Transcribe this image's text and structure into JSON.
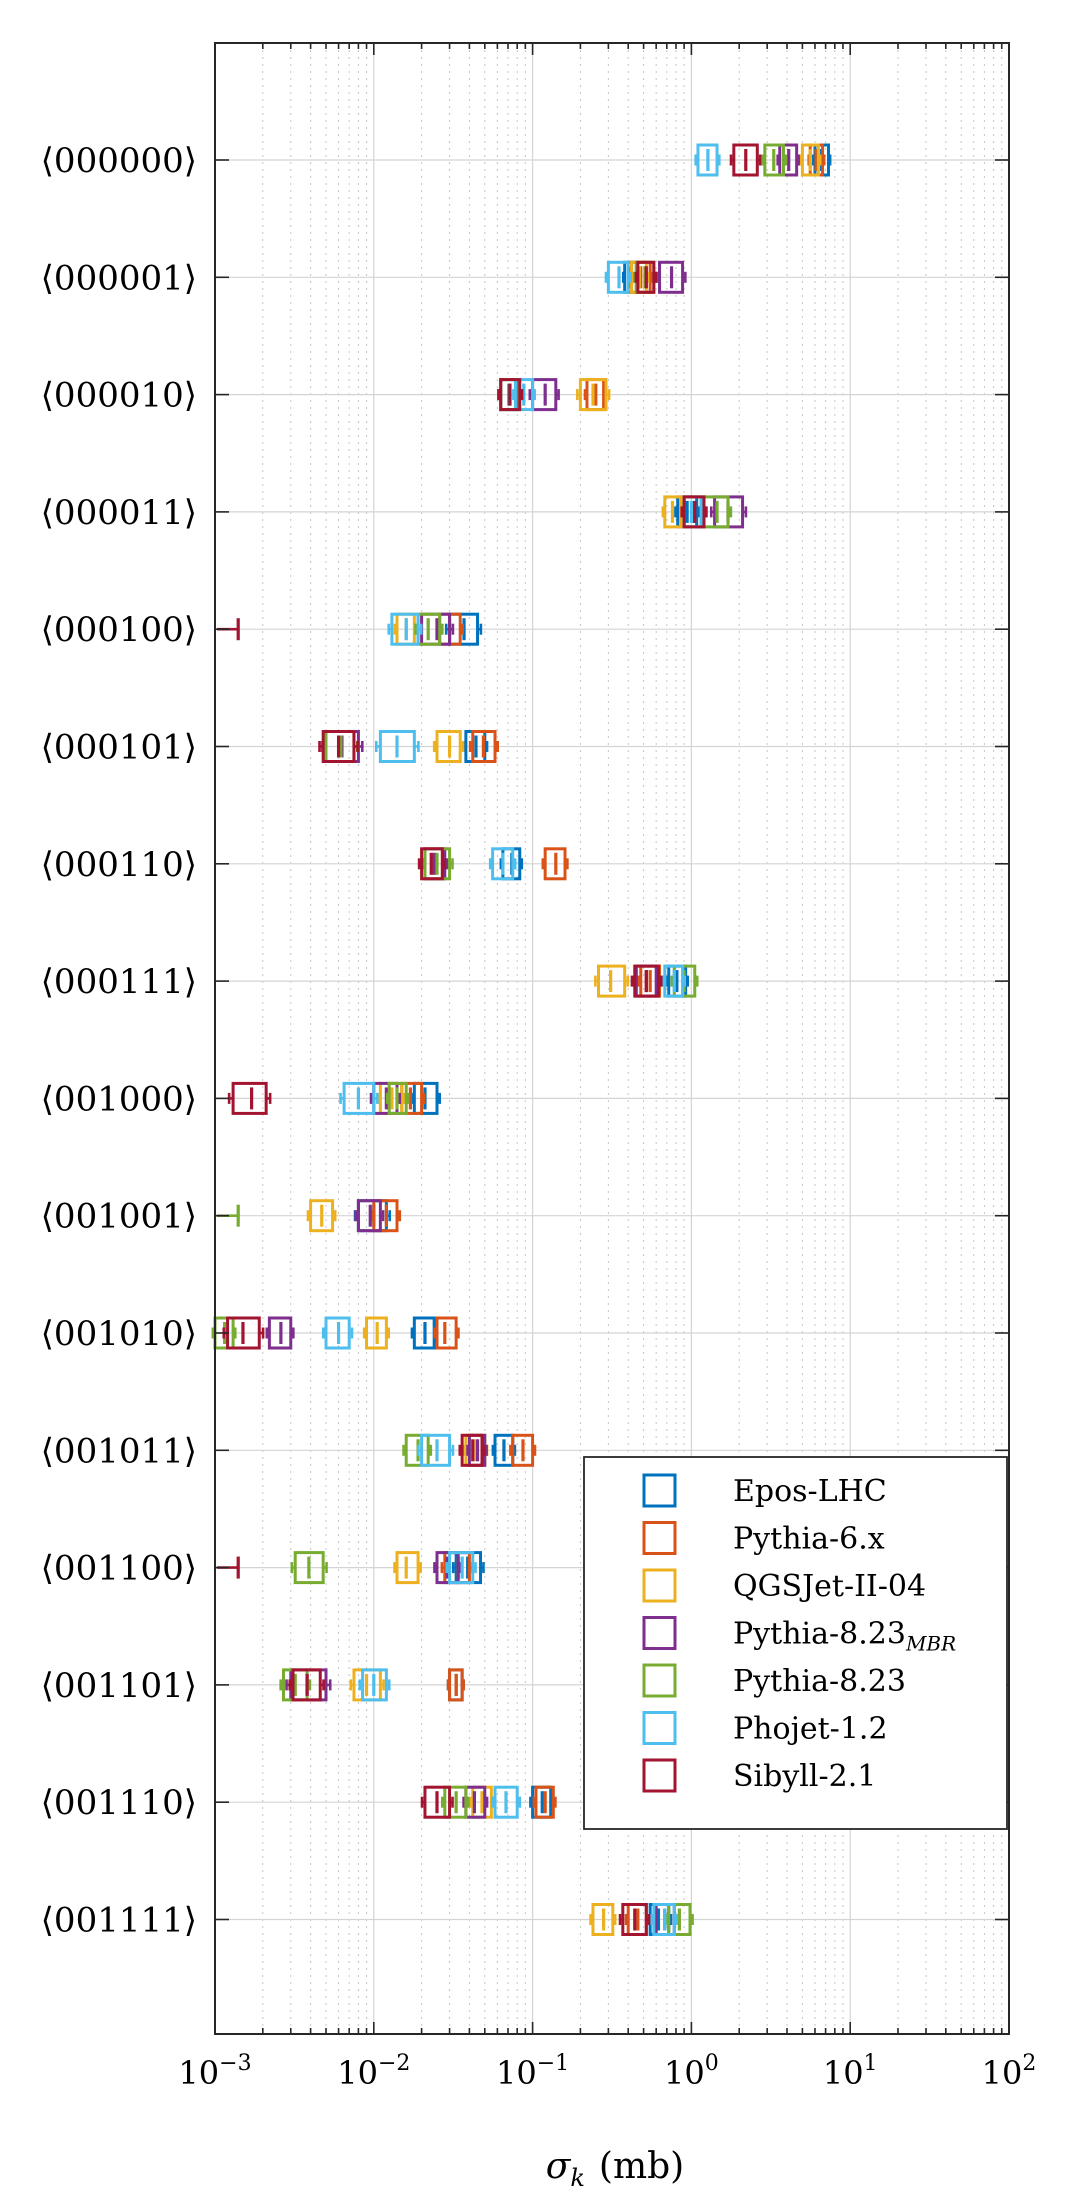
{
  "chart_data": {
    "type": "box",
    "orientation": "horizontal",
    "x_scale": "log",
    "xlim": [
      0.001,
      100
    ],
    "x_ticks": [
      0.001,
      0.01,
      0.1,
      1,
      10,
      100
    ],
    "x_tick_labels": [
      "10⁻³",
      "10⁻²",
      "10⁻¹",
      "10⁰",
      "10¹",
      "10²"
    ],
    "xlabel": "σk (mb)",
    "xlabel_main": "σ",
    "xlabel_sub": "k",
    "xlabel_unit": "(mb)",
    "grid": true,
    "legend_position": "lower-right",
    "categories": [
      "⟨000000⟩",
      "⟨000001⟩",
      "⟨000010⟩",
      "⟨000011⟩",
      "⟨000100⟩",
      "⟨000101⟩",
      "⟨000110⟩",
      "⟨000111⟩",
      "⟨001000⟩",
      "⟨001001⟩",
      "⟨001010⟩",
      "⟨001011⟩",
      "⟨001100⟩",
      "⟨001101⟩",
      "⟨001110⟩",
      "⟨001111⟩"
    ],
    "series": [
      {
        "name": "Epos-LHC",
        "color": "#0072BD",
        "boxes": [
          [
            6.0,
            7.3,
            6.6
          ],
          [
            0.38,
            0.45,
            0.41
          ],
          [
            0.063,
            0.08,
            0.071
          ],
          [
            0.82,
            1.08,
            0.94
          ],
          [
            0.03,
            0.045,
            0.037
          ],
          [
            0.038,
            0.05,
            0.044
          ],
          [
            0.065,
            0.083,
            0.074
          ],
          [
            0.72,
            0.92,
            0.81
          ],
          [
            0.018,
            0.025,
            0.021
          ],
          [
            0.008,
            0.012,
            0.01
          ],
          [
            0.018,
            0.024,
            0.021
          ],
          [
            0.058,
            0.075,
            0.066
          ],
          [
            0.033,
            0.047,
            0.039
          ],
          [
            0.03,
            0.036,
            0.033
          ],
          [
            0.1,
            0.13,
            0.115
          ],
          [
            0.55,
            0.72,
            0.62
          ]
        ]
      },
      {
        "name": "Pythia-6.x",
        "color": "#D95319",
        "boxes": [
          [
            5.6,
            6.7,
            6.1
          ],
          [
            0.42,
            0.55,
            0.48
          ],
          [
            0.22,
            0.28,
            0.25
          ],
          [
            0.9,
            1.2,
            1.04
          ],
          [
            0.026,
            0.035,
            0.03
          ],
          [
            0.042,
            0.058,
            0.049
          ],
          [
            0.12,
            0.16,
            0.14
          ],
          [
            0.48,
            0.63,
            0.55
          ],
          [
            0.015,
            0.02,
            0.017
          ],
          [
            0.01,
            0.014,
            0.012
          ],
          [
            0.025,
            0.033,
            0.028
          ],
          [
            0.075,
            0.1,
            0.087
          ],
          [
            0.028,
            0.04,
            0.034
          ],
          [
            0.03,
            0.036,
            0.033
          ],
          [
            0.105,
            0.135,
            0.12
          ],
          [
            0.4,
            0.52,
            0.46
          ]
        ]
      },
      {
        "name": "QGSJet-II-04",
        "color": "#EDB120",
        "boxes": [
          [
            5.0,
            6.3,
            5.6
          ],
          [
            0.42,
            0.52,
            0.47
          ],
          [
            0.2,
            0.29,
            0.24
          ],
          [
            0.68,
            0.86,
            0.76
          ],
          [
            0.014,
            0.018,
            0.016
          ],
          [
            0.025,
            0.035,
            0.03
          ],
          [
            null,
            null,
            null
          ],
          [
            0.26,
            0.38,
            0.31
          ],
          [
            0.011,
            0.015,
            0.013
          ],
          [
            0.004,
            0.0055,
            0.0047
          ],
          [
            0.009,
            0.012,
            0.0105
          ],
          [
            0.038,
            0.05,
            0.044
          ],
          [
            0.014,
            0.019,
            0.016
          ],
          [
            0.0075,
            0.011,
            0.009
          ],
          [
            0.042,
            0.055,
            0.048
          ],
          [
            0.24,
            0.32,
            0.28
          ]
        ]
      },
      {
        "name": "Pythia-8.23MBR",
        "color": "#7E2F8E",
        "boxes": [
          [
            3.6,
            4.6,
            4.1
          ],
          [
            0.63,
            0.88,
            0.75
          ],
          [
            0.1,
            0.14,
            0.12
          ],
          [
            1.4,
            2.1,
            1.7
          ],
          [
            0.02,
            0.03,
            0.025
          ],
          [
            0.005,
            0.008,
            0.0063
          ],
          [
            0.021,
            0.028,
            0.024
          ],
          [
            0.45,
            0.6,
            0.52
          ],
          [
            0.01,
            0.014,
            0.012
          ],
          [
            0.008,
            0.011,
            0.0095
          ],
          [
            0.0022,
            0.003,
            0.0026
          ],
          [
            0.04,
            0.05,
            0.045
          ],
          [
            0.025,
            0.034,
            0.029
          ],
          [
            0.003,
            0.005,
            0.0038
          ],
          [
            0.038,
            0.05,
            0.043
          ],
          [
            0.6,
            0.78,
            0.68
          ]
        ]
      },
      {
        "name": "Pythia-8.23",
        "color": "#77AC30",
        "boxes": [
          [
            2.9,
            3.8,
            3.3
          ],
          [
            0.45,
            0.58,
            0.51
          ],
          [
            0.063,
            0.082,
            0.072
          ],
          [
            1.2,
            1.7,
            1.45
          ],
          [
            0.019,
            0.026,
            0.022
          ],
          [
            0.005,
            0.0075,
            0.0062
          ],
          [
            0.021,
            0.03,
            0.025
          ],
          [
            0.78,
            1.05,
            0.9
          ],
          [
            0.0125,
            0.016,
            0.014
          ],
          [
            null,
            null,
            0.0014
          ],
          [
            0.001,
            0.0013,
            0.00115
          ],
          [
            0.016,
            0.022,
            0.019
          ],
          [
            0.0032,
            0.0048,
            0.0039
          ],
          [
            0.0027,
            0.0038,
            0.0032
          ],
          [
            0.028,
            0.038,
            0.033
          ],
          [
            0.72,
            0.98,
            0.84
          ]
        ]
      },
      {
        "name": "Phojet-1.2",
        "color": "#4DBEEE",
        "boxes": [
          [
            1.1,
            1.45,
            1.27
          ],
          [
            0.3,
            0.4,
            0.35
          ],
          [
            0.078,
            0.1,
            0.088
          ],
          [
            0.9,
            1.15,
            1.0
          ],
          [
            0.013,
            0.019,
            0.016
          ],
          [
            0.011,
            0.018,
            0.014
          ],
          [
            0.056,
            0.075,
            0.065
          ],
          [
            0.68,
            0.88,
            0.78
          ],
          [
            0.0065,
            0.01,
            0.008
          ],
          [
            null,
            null,
            null
          ],
          [
            0.005,
            0.007,
            0.006
          ],
          [
            0.02,
            0.03,
            0.025
          ],
          [
            0.03,
            0.042,
            0.036
          ],
          [
            0.0085,
            0.012,
            0.01
          ],
          [
            0.058,
            0.08,
            0.068
          ],
          [
            0.58,
            0.78,
            0.68
          ]
        ]
      },
      {
        "name": "Sibyll-2.1",
        "color": "#A2142F",
        "boxes": [
          [
            1.85,
            2.6,
            2.2
          ],
          [
            0.46,
            0.58,
            0.52
          ],
          [
            0.063,
            0.083,
            0.072
          ],
          [
            0.9,
            1.2,
            1.05
          ],
          [
            null,
            null,
            0.0014
          ],
          [
            0.0048,
            0.0075,
            0.006
          ],
          [
            0.02,
            0.027,
            0.023
          ],
          [
            0.44,
            0.62,
            0.52
          ],
          [
            0.0013,
            0.0021,
            0.0017
          ],
          [
            null,
            null,
            null
          ],
          [
            0.0012,
            0.0019,
            0.0015
          ],
          [
            0.036,
            0.048,
            0.042
          ],
          [
            null,
            null,
            0.0014
          ],
          [
            0.0031,
            0.0046,
            0.0038
          ],
          [
            0.021,
            0.03,
            0.025
          ],
          [
            0.37,
            0.52,
            0.44
          ]
        ]
      }
    ]
  }
}
